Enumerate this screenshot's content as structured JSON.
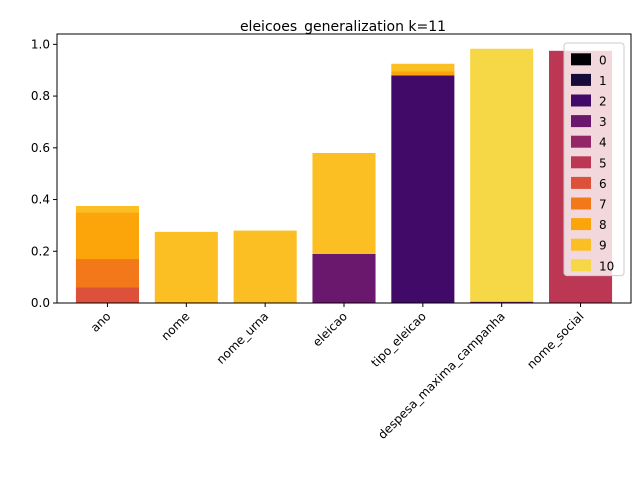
{
  "chart_data": {
    "type": "bar",
    "stacked": true,
    "title": "eleicoes_generalization k=11",
    "xlabel": "",
    "ylabel": "",
    "ylim": [
      0,
      1.04
    ],
    "yticks": [
      0.0,
      0.2,
      0.4,
      0.6,
      0.8,
      1.0
    ],
    "grid": false,
    "legend_position": "top-right",
    "categories": [
      "ano",
      "nome",
      "nome_urna",
      "eleicao",
      "tipo_eleicao",
      "despesa_maxima_campanha",
      "nome_social"
    ],
    "series": [
      {
        "name": "0",
        "color": "#000004",
        "values": [
          0,
          0,
          0,
          0,
          0,
          0,
          0
        ]
      },
      {
        "name": "1",
        "color": "#160b39",
        "values": [
          0,
          0,
          0,
          0,
          0,
          0,
          0
        ]
      },
      {
        "name": "2",
        "color": "#420a68",
        "values": [
          0,
          0,
          0,
          0,
          0.88,
          0,
          0
        ]
      },
      {
        "name": "3",
        "color": "#6a176e",
        "values": [
          0,
          0,
          0,
          0.19,
          0,
          0.005,
          0
        ]
      },
      {
        "name": "4",
        "color": "#932667",
        "values": [
          0,
          0,
          0,
          0,
          0,
          0,
          0
        ]
      },
      {
        "name": "5",
        "color": "#bc3754",
        "values": [
          0,
          0,
          0,
          0,
          0,
          0,
          0.975
        ]
      },
      {
        "name": "6",
        "color": "#dd513a",
        "values": [
          0.06,
          0,
          0,
          0,
          0,
          0,
          0
        ]
      },
      {
        "name": "7",
        "color": "#f37819",
        "values": [
          0.11,
          0,
          0,
          0,
          0,
          0,
          0
        ]
      },
      {
        "name": "8",
        "color": "#fca50a",
        "values": [
          0.18,
          0.005,
          0,
          0,
          0.015,
          0,
          0
        ]
      },
      {
        "name": "9",
        "color": "#fbbe23",
        "values": [
          0.025,
          0.27,
          0.28,
          0.39,
          0.03,
          0,
          0
        ]
      },
      {
        "name": "10",
        "color": "#f6d746",
        "values": [
          0,
          0,
          0,
          0,
          0,
          0.978,
          0
        ]
      }
    ]
  }
}
